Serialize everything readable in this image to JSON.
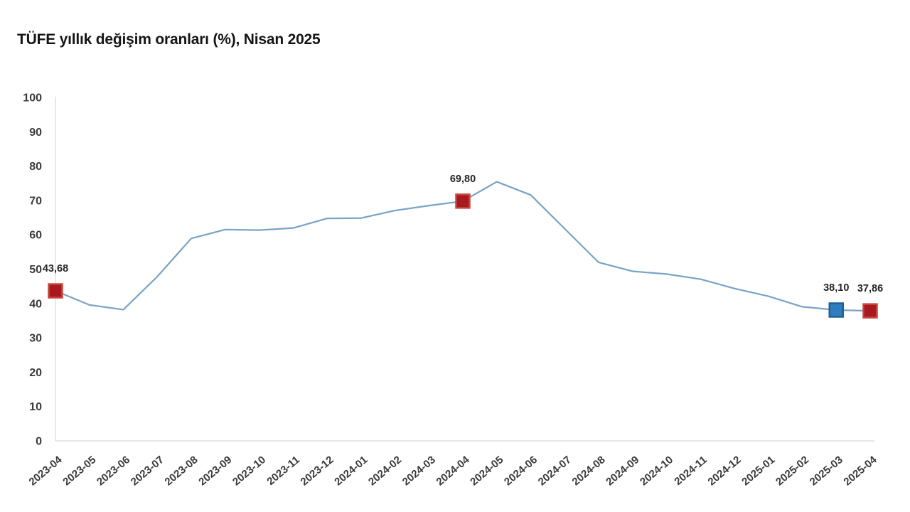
{
  "title": "TÜFE yıllık değişim oranları (%), Nisan 2025",
  "chart_data": {
    "type": "line",
    "title": "TÜFE yıllık değişim oranları (%), Nisan 2025",
    "xlabel": "",
    "ylabel": "",
    "ylim": [
      0,
      100
    ],
    "yticks": [
      0,
      10,
      20,
      30,
      40,
      50,
      60,
      70,
      80,
      90,
      100
    ],
    "grid": false,
    "legend": false,
    "categories": [
      "2023-04",
      "2023-05",
      "2023-06",
      "2023-07",
      "2023-08",
      "2023-09",
      "2023-10",
      "2023-11",
      "2023-12",
      "2024-01",
      "2024-02",
      "2024-03",
      "2024-04",
      "2024-05",
      "2024-06",
      "2024-07",
      "2024-08",
      "2024-09",
      "2024-10",
      "2024-11",
      "2024-12",
      "2025-01",
      "2025-02",
      "2025-03",
      "2025-04"
    ],
    "values": [
      43.68,
      39.59,
      38.21,
      47.83,
      58.94,
      61.53,
      61.36,
      61.98,
      64.77,
      64.86,
      67.07,
      68.5,
      69.8,
      75.45,
      71.6,
      61.78,
      51.97,
      49.38,
      48.58,
      47.09,
      44.38,
      42.12,
      39.05,
      38.1,
      37.86
    ],
    "labeled_points": [
      {
        "index": 0,
        "category": "2023-04",
        "label": "43,68",
        "marker_fill": "#A8191F",
        "marker_stroke": "#C8463C"
      },
      {
        "index": 12,
        "category": "2024-04",
        "label": "69,80",
        "marker_fill": "#A8191F",
        "marker_stroke": "#C8463C"
      },
      {
        "index": 23,
        "category": "2025-03",
        "label": "38,10",
        "marker_fill": "#2E7DBE",
        "marker_stroke": "#1F5F95"
      },
      {
        "index": 24,
        "category": "2025-04",
        "label": "37,86",
        "marker_fill": "#A8191F",
        "marker_stroke": "#C8463C"
      }
    ],
    "colors": {
      "line": "#78A3C5",
      "axis": "#D9D9D9",
      "tick_text": "#3B3B3B",
      "label_text": "#262626",
      "background": "#FFFFFF"
    }
  }
}
